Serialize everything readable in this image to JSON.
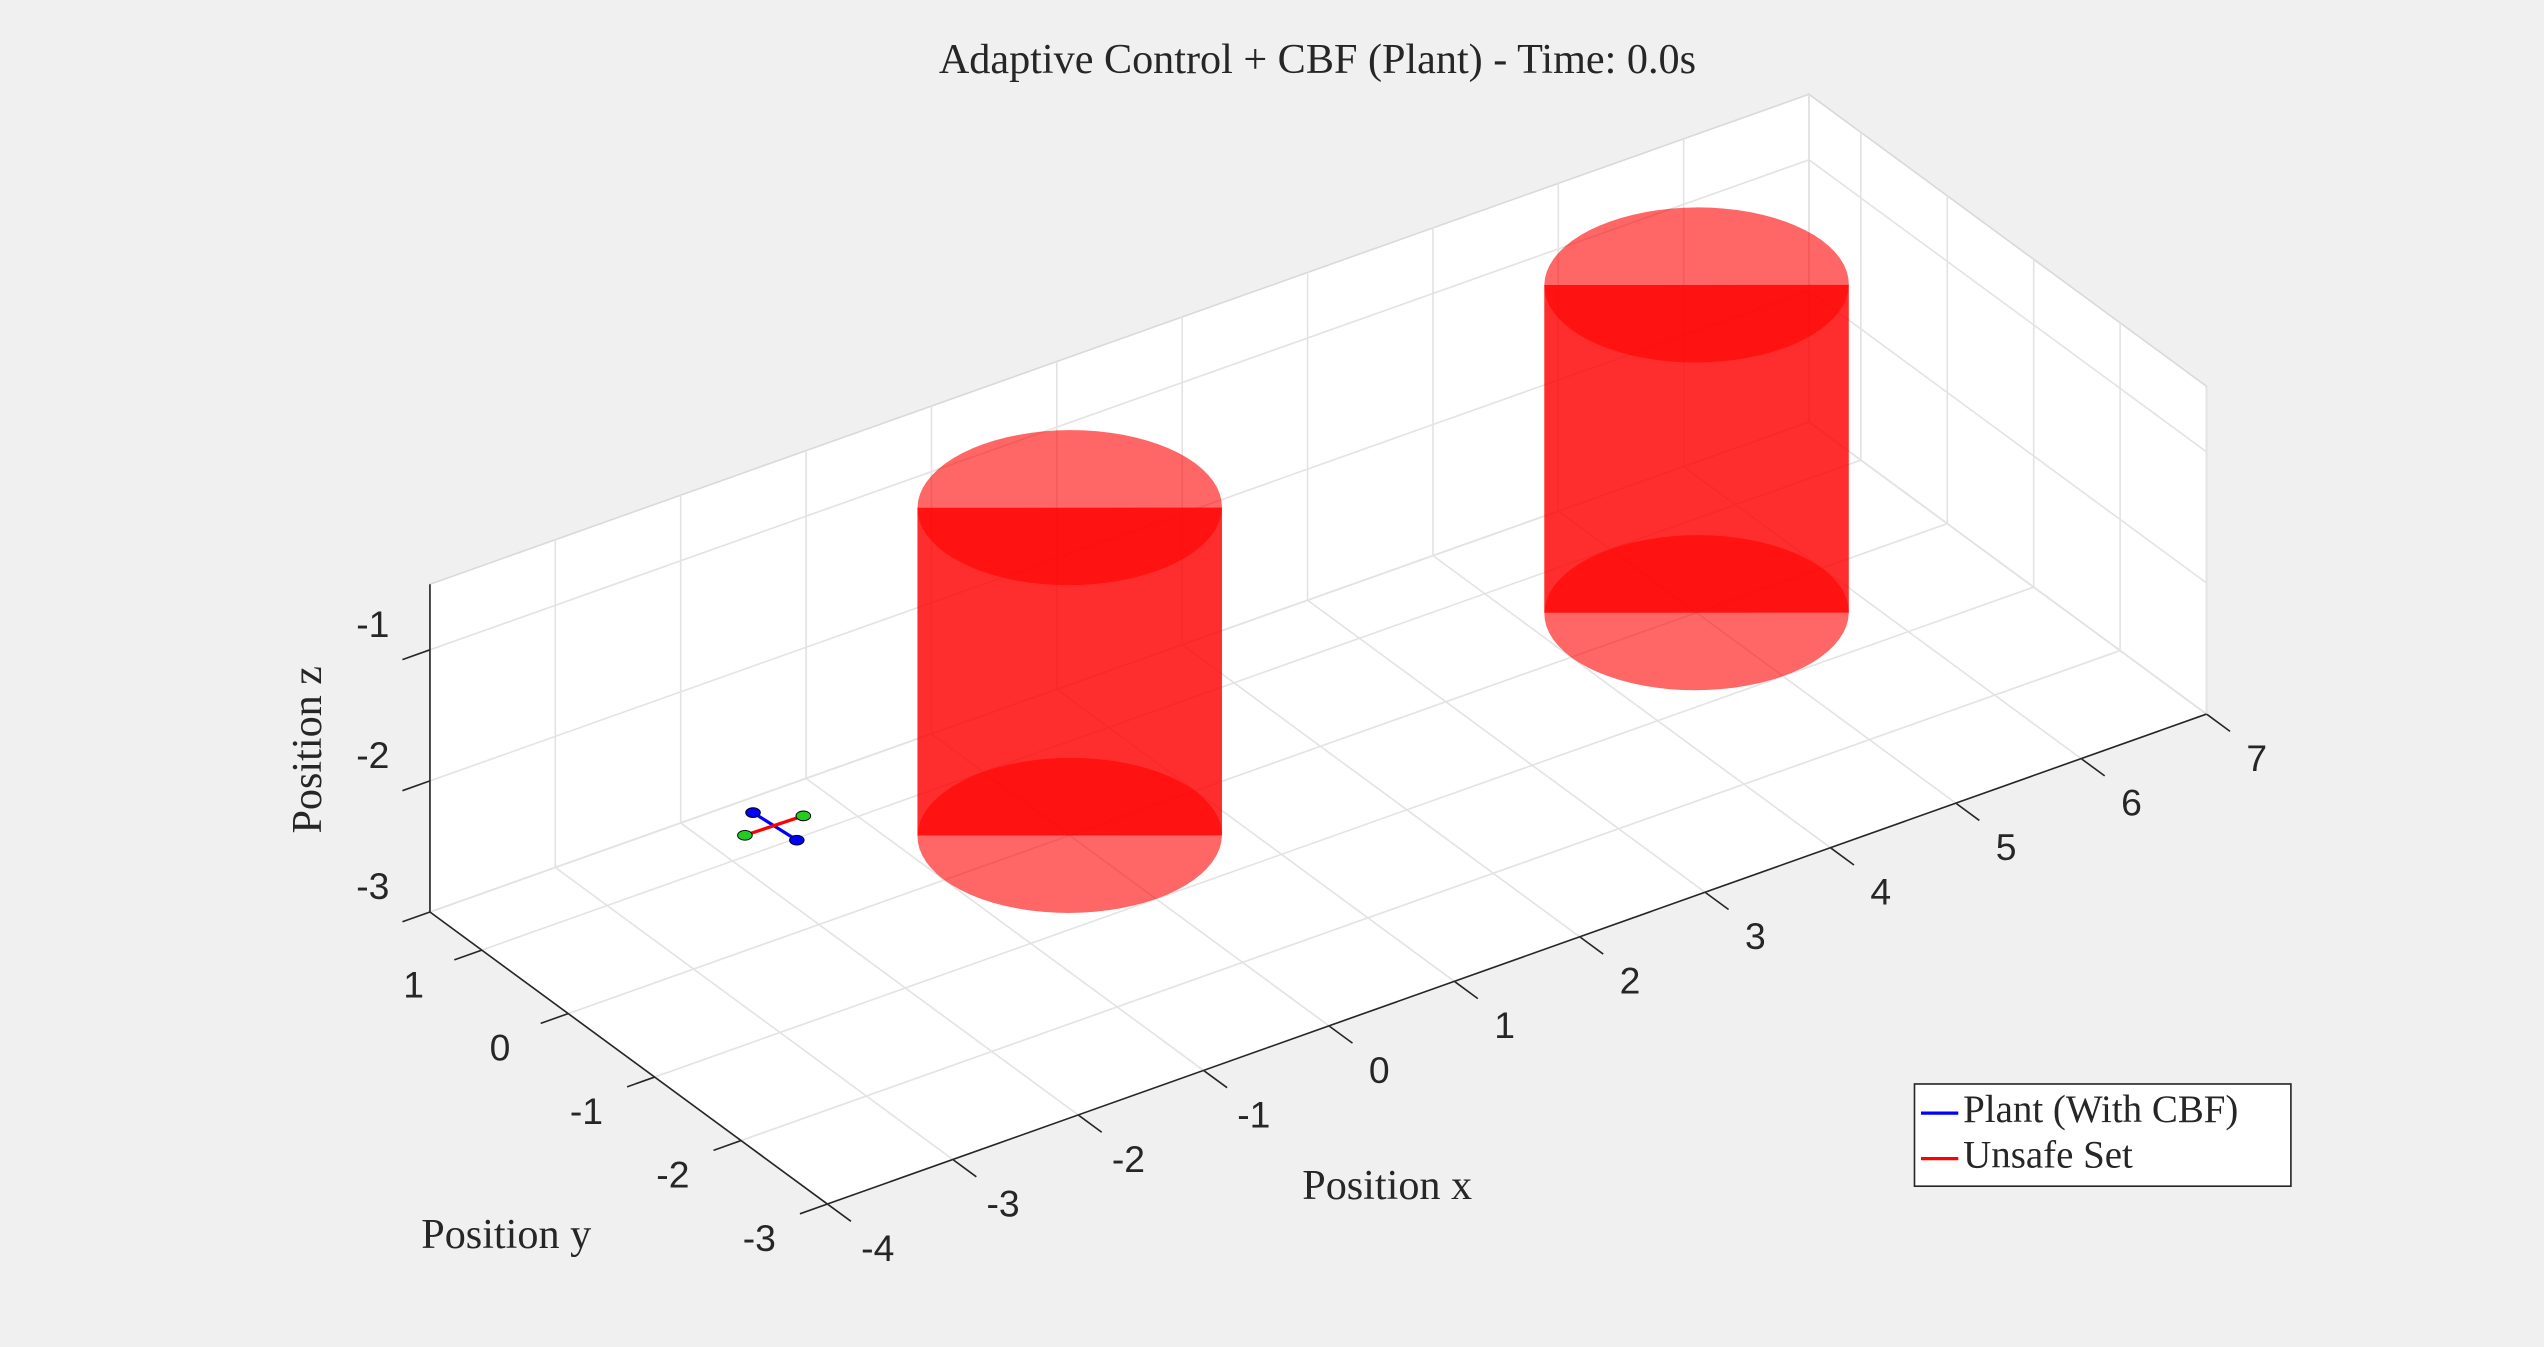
{
  "chart_data": {
    "type": "scatter3d",
    "title": "Adaptive Control + CBF (Plant) - Time: 0.0s",
    "xlabel": "Position x",
    "ylabel": "Position y",
    "zlabel": "Position z",
    "xlim": [
      -4,
      7
    ],
    "ylim": [
      -3,
      1.6
    ],
    "zlim": [
      -3,
      -0.5
    ],
    "xticks": [
      -4,
      -3,
      -2,
      -1,
      0,
      1,
      2,
      3,
      4,
      5,
      6,
      7
    ],
    "yticks": [
      -3,
      -2,
      -1,
      0,
      1
    ],
    "zticks": [
      -3,
      -2,
      -1
    ],
    "grid": true,
    "legend": "southeast",
    "series": [
      {
        "name": "Plant (With CBF)",
        "color": "#0000ff",
        "x": [
          -2
        ],
        "y": [
          0.5
        ],
        "z": [
          -2.5
        ]
      },
      {
        "name": "Unsafe Set",
        "color": "#ff0000",
        "center_x": [
          0,
          5
        ],
        "center_y": [
          0,
          0
        ],
        "radius": [
          1,
          1
        ],
        "zmin": [
          -3,
          -3
        ],
        "zmax": [
          -0.5,
          -0.5
        ]
      }
    ]
  }
}
